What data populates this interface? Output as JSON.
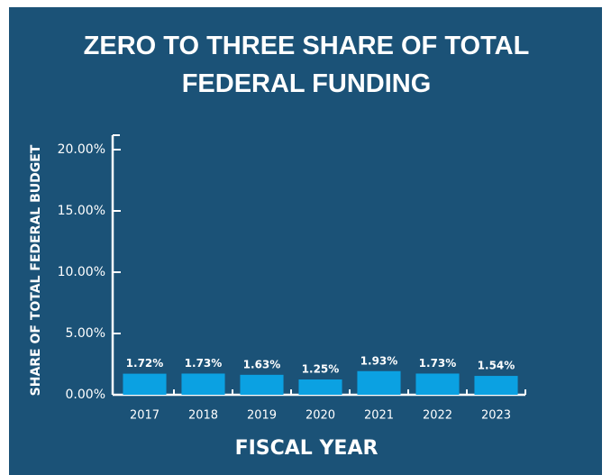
{
  "chart_data": {
    "type": "bar",
    "title": "ZERO TO THREE SHARE OF TOTAL FEDERAL FUNDING",
    "x_label": "FISCAL YEAR",
    "y_label": "SHARE OF TOTAL FEDERAL BUDGET",
    "categories": [
      "2017",
      "2018",
      "2019",
      "2020",
      "2021",
      "2022",
      "2023"
    ],
    "values": [
      1.72,
      1.73,
      1.63,
      1.25,
      1.93,
      1.73,
      1.54
    ],
    "value_labels": [
      "1.72%",
      "1.73%",
      "1.63%",
      "1.25%",
      "1.93%",
      "1.73%",
      "1.54%"
    ],
    "color": "#0ba1e2",
    "ylim": [
      0,
      20
    ],
    "yticks": [
      {
        "value": 0,
        "label": "0.00%"
      },
      {
        "value": 5,
        "label": "5.00%"
      },
      {
        "value": 10,
        "label": "10.00%"
      },
      {
        "value": 15,
        "label": "15.00%"
      },
      {
        "value": 20,
        "label": "20.00%"
      }
    ]
  }
}
